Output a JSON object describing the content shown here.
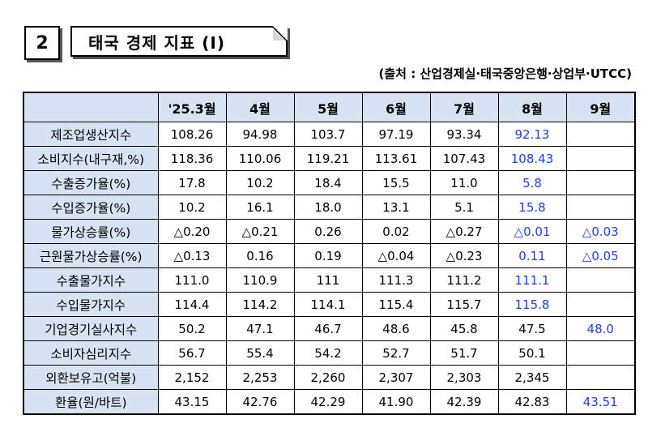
{
  "header": {
    "section_number": "2",
    "title": "태국 경제 지표 (Ⅰ)",
    "source": "(출처 : 산업경제실·태국중앙은행·상업부·UTCC)"
  },
  "table": {
    "columns": [
      "",
      "'25.3월",
      "4월",
      "5월",
      "6월",
      "7월",
      "8월",
      "9월"
    ],
    "rows": [
      {
        "label": "제조업생산지수",
        "values": [
          "108.26",
          "94.98",
          "103.7",
          "97.19",
          "93.34",
          "92.13",
          ""
        ]
      },
      {
        "label": "소비지수(내구재,%)",
        "values": [
          "118.36",
          "110.06",
          "119.21",
          "113.61",
          "107.43",
          "108.43",
          ""
        ]
      },
      {
        "label": "수출증가율(%)",
        "values": [
          "17.8",
          "10.2",
          "18.4",
          "15.5",
          "11.0",
          "5.8",
          ""
        ]
      },
      {
        "label": "수입증가율(%)",
        "values": [
          "10.2",
          "16.1",
          "18.0",
          "13.1",
          "5.1",
          "15.8",
          ""
        ]
      },
      {
        "label": "물가상승률(%)",
        "values": [
          "△0.20",
          "△0.21",
          "0.26",
          "0.02",
          "△0.27",
          "△0.01",
          "△0.03"
        ]
      },
      {
        "label": "근원물가상승률(%)",
        "values": [
          "△0.13",
          "0.16",
          "0.19",
          "△0.04",
          "△0.23",
          "0.11",
          "△0.05"
        ]
      },
      {
        "label": "수출물가지수",
        "values": [
          "111.0",
          "110.9",
          "111",
          "111.3",
          "111.2",
          "111.1",
          ""
        ]
      },
      {
        "label": "수입물가지수",
        "values": [
          "114.4",
          "114.2",
          "114.1",
          "115.4",
          "115.7",
          "115.8",
          ""
        ]
      },
      {
        "label": "기업경기실사지수",
        "values": [
          "50.2",
          "47.1",
          "46.7",
          "48.6",
          "45.8",
          "47.5",
          "48.0"
        ]
      },
      {
        "label": "소비자심리지수",
        "values": [
          "56.7",
          "55.4",
          "54.2",
          "52.7",
          "51.7",
          "50.1",
          ""
        ]
      },
      {
        "label": "외환보유고(억불)",
        "values": [
          "2,152",
          "2,253",
          "2,260",
          "2,307",
          "2,303",
          "2,345",
          ""
        ]
      },
      {
        "label": "환율(원/바트)",
        "values": [
          "43.15",
          "42.76",
          "42.29",
          "41.90",
          "42.39",
          "42.83",
          "43.51"
        ]
      }
    ],
    "highlight_color": "#1f3cff",
    "header_background": "#d7e3f2"
  }
}
